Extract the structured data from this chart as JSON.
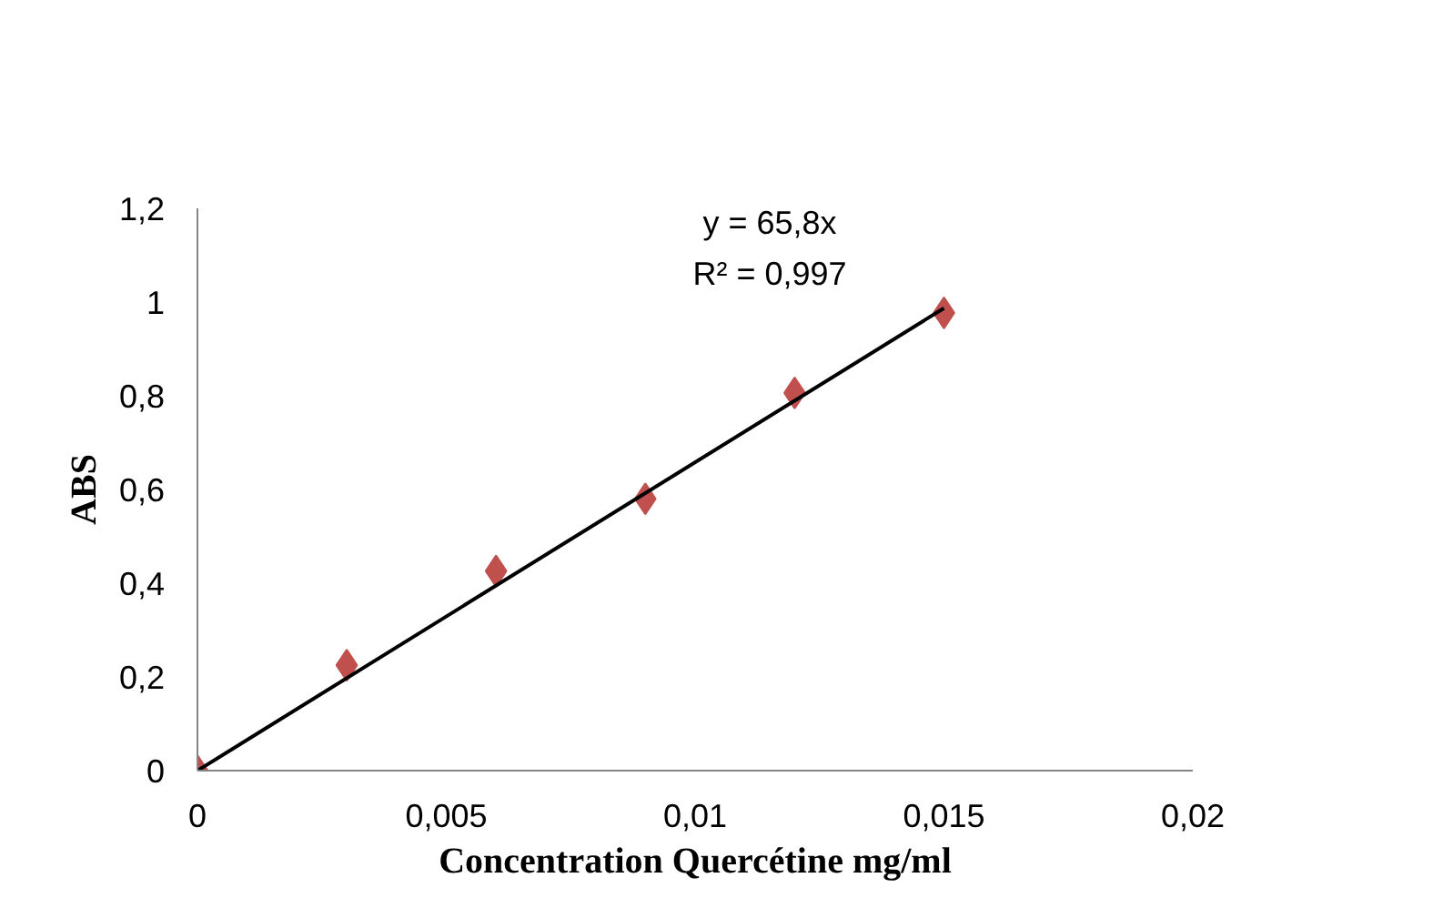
{
  "chart_data": {
    "type": "scatter",
    "xlabel": "Concentration Quercétine mg/ml",
    "ylabel": "ABS",
    "xlim": [
      0,
      0.02
    ],
    "xticks": [
      {
        "value": 0,
        "label": "0"
      },
      {
        "value": 0.005,
        "label": "0,005"
      },
      {
        "value": 0.01,
        "label": "0,01"
      },
      {
        "value": 0.015,
        "label": "0,015"
      },
      {
        "value": 0.02,
        "label": "0,02"
      }
    ],
    "ylim": [
      0,
      1.2
    ],
    "yticks": [
      {
        "value": 0,
        "label": "0"
      },
      {
        "value": 0.2,
        "label": "0,2"
      },
      {
        "value": 0.4,
        "label": "0,4"
      },
      {
        "value": 0.6,
        "label": "0,6"
      },
      {
        "value": 0.8,
        "label": "0,8"
      },
      {
        "value": 1,
        "label": "1"
      },
      {
        "value": 1.2,
        "label": "1,2"
      }
    ],
    "grid": false,
    "marker": "diamond",
    "annotations": [
      "y = 65,8x",
      "R² = 0,997"
    ],
    "series": [
      {
        "type": "line",
        "color": "#000000",
        "x": [
          0,
          0.015
        ],
        "values": [
          0,
          0.987
        ],
        "marker": "none"
      },
      {
        "color": "#c0504d",
        "x": [
          0,
          0.003,
          0.006,
          0.009,
          0.012,
          0.015
        ],
        "values": [
          0,
          0.225,
          0.426,
          0.58,
          0.806,
          0.977
        ]
      }
    ]
  }
}
